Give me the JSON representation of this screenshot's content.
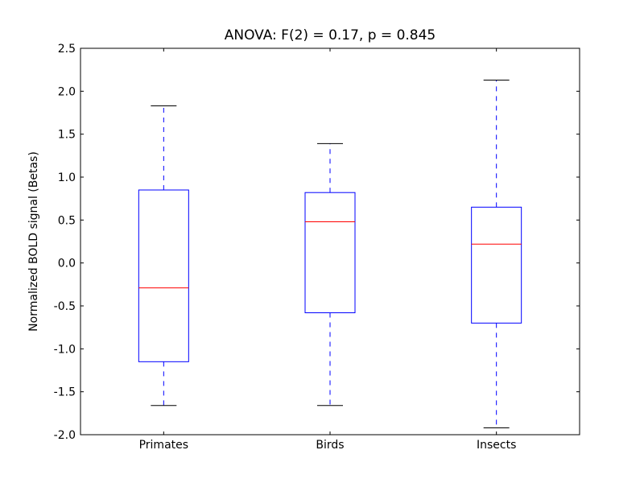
{
  "chart_data": {
    "type": "boxplot",
    "title": "ANOVA: F(2) = 0.17, p = 0.845",
    "xlabel": "",
    "ylabel": "Normalized BOLD signal (Betas)",
    "ylim": [
      -2.0,
      2.5
    ],
    "yticks": [
      "-2.0",
      "-1.5",
      "-1.0",
      "-0.5",
      "0.0",
      "0.5",
      "1.0",
      "1.5",
      "2.0",
      "2.5"
    ],
    "categories": [
      "Primates",
      "Birds",
      "Insects"
    ],
    "boxes": [
      {
        "label": "Primates",
        "whisker_low": -1.66,
        "q1": -1.15,
        "median": -0.29,
        "q3": 0.85,
        "whisker_high": 1.83
      },
      {
        "label": "Birds",
        "whisker_low": -1.66,
        "q1": -0.58,
        "median": 0.48,
        "q3": 0.82,
        "whisker_high": 1.39
      },
      {
        "label": "Insects",
        "whisker_low": -1.92,
        "q1": -0.7,
        "median": 0.22,
        "q3": 0.65,
        "whisker_high": 2.13
      }
    ],
    "grid": false,
    "colors": {
      "box": "#0000ff",
      "median": "#ff0000",
      "cap": "#000000"
    }
  }
}
